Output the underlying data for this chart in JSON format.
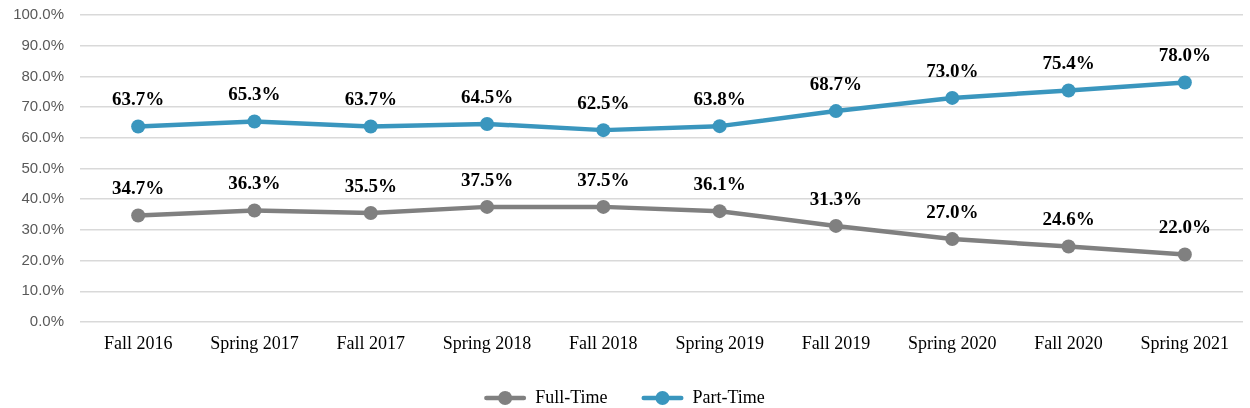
{
  "chart_data": {
    "type": "line",
    "categories": [
      "Fall 2016",
      "Spring 2017",
      "Fall 2017",
      "Spring 2018",
      "Fall 2018",
      "Spring 2019",
      "Fall 2019",
      "Spring 2020",
      "Fall 2020",
      "Spring 2021"
    ],
    "series": [
      {
        "name": "Full-Time",
        "color": "#808080",
        "values": [
          34.7,
          36.3,
          35.5,
          37.5,
          37.5,
          36.1,
          31.3,
          27.0,
          24.6,
          22.0
        ],
        "value_labels": [
          "34.7%",
          "36.3%",
          "35.5%",
          "37.5%",
          "37.5%",
          "36.1%",
          "31.3%",
          "27.0%",
          "24.6%",
          "22.0%"
        ]
      },
      {
        "name": "Part-Time",
        "color": "#3a96be",
        "values": [
          63.7,
          65.3,
          63.7,
          64.5,
          62.5,
          63.8,
          68.7,
          73.0,
          75.4,
          78.0
        ],
        "value_labels": [
          "63.7%",
          "65.3%",
          "63.7%",
          "64.5%",
          "62.5%",
          "63.8%",
          "68.7%",
          "73.0%",
          "75.4%",
          "78.0%"
        ]
      }
    ],
    "ylim": [
      0,
      100
    ],
    "yticks": [
      {
        "value": 0,
        "label": "0.0%"
      },
      {
        "value": 10,
        "label": "10.0%"
      },
      {
        "value": 20,
        "label": "20.0%"
      },
      {
        "value": 30,
        "label": "30.0%"
      },
      {
        "value": 40,
        "label": "40.0%"
      },
      {
        "value": 50,
        "label": "50.0%"
      },
      {
        "value": 60,
        "label": "60.0%"
      },
      {
        "value": 70,
        "label": "70.0%"
      },
      {
        "value": 80,
        "label": "80.0%"
      },
      {
        "value": 90,
        "label": "90.0%"
      },
      {
        "value": 100,
        "label": "100.0%"
      }
    ],
    "grid": "y",
    "legend": "bottom",
    "marker": "circle"
  }
}
